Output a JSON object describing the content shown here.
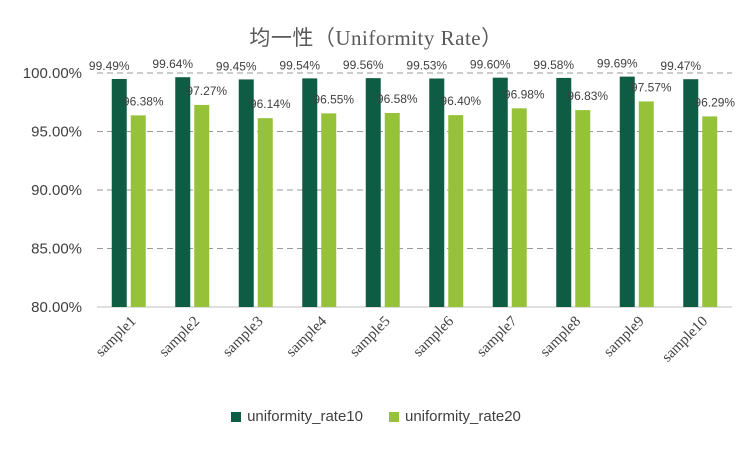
{
  "colors": {
    "series1": "#0f5c45",
    "series2": "#96c23a",
    "grid": "#9a9a9a"
  },
  "chart_data": {
    "type": "bar",
    "title": "均一性（Uniformity Rate）",
    "xlabel": "",
    "ylabel": "",
    "ylim": [
      80,
      100
    ],
    "y_ticks": [
      "80.00%",
      "85.00%",
      "90.00%",
      "95.00%",
      "100.00%"
    ],
    "grid": "dashed horizontal",
    "legend_position": "bottom",
    "categories": [
      "sample1",
      "sample2",
      "sample3",
      "sample4",
      "sample5",
      "sample6",
      "sample7",
      "sample8",
      "sample9",
      "sample10"
    ],
    "series": [
      {
        "name": "uniformity_rate10",
        "values": [
          99.49,
          99.64,
          99.45,
          99.54,
          99.56,
          99.53,
          99.6,
          99.58,
          99.69,
          99.47
        ],
        "labels": [
          "99.49%",
          "99.64%",
          "99.45%",
          "99.54%",
          "99.56%",
          "99.53%",
          "99.60%",
          "99.58%",
          "99.69%",
          "99.47%"
        ]
      },
      {
        "name": "uniformity_rate20",
        "values": [
          96.38,
          97.27,
          96.14,
          96.55,
          96.58,
          96.4,
          96.98,
          96.83,
          97.57,
          96.29
        ],
        "labels": [
          "96.38%",
          "97.27%",
          "96.14%",
          "96.55%",
          "96.58%",
          "96.40%",
          "96.98%",
          "96.83%",
          "97.57%",
          "96.29%"
        ]
      }
    ]
  }
}
